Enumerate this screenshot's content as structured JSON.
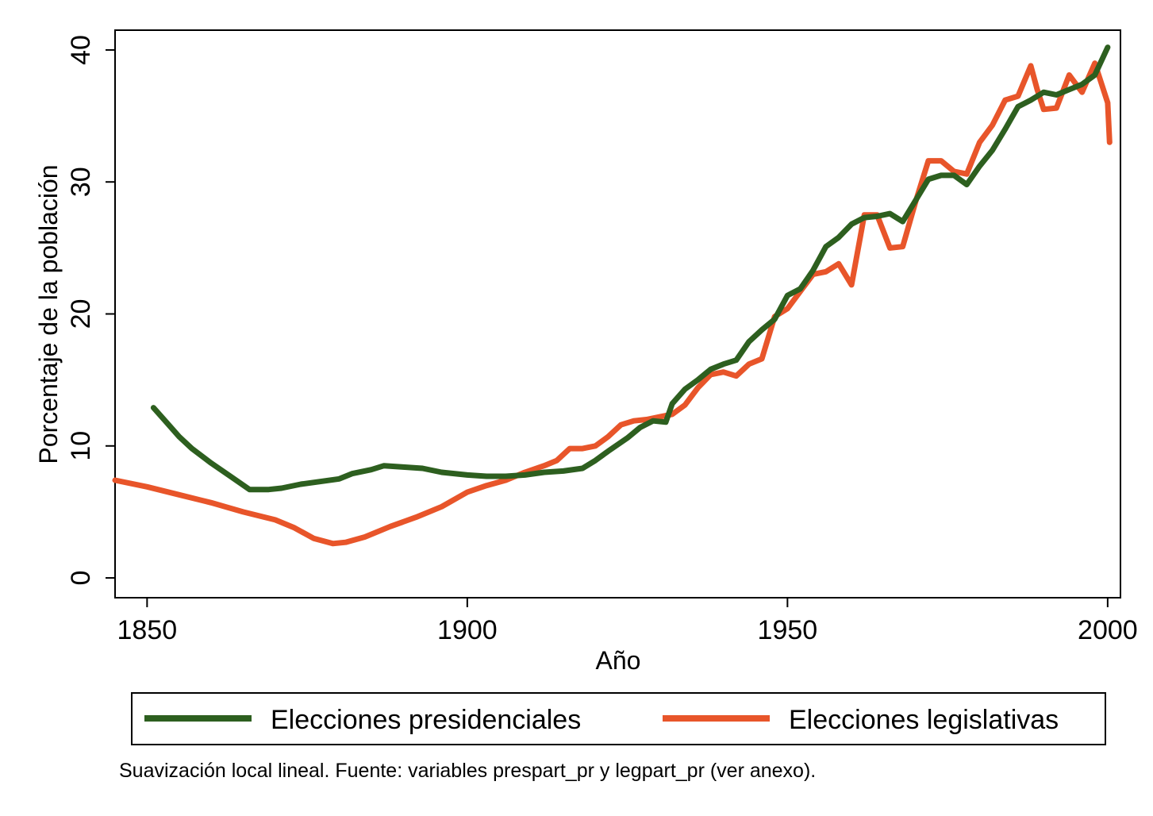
{
  "chart_data": {
    "type": "line",
    "title": "",
    "xlabel": "Año",
    "ylabel": "Porcentaje de la población",
    "xlim": [
      1845,
      2002
    ],
    "ylim": [
      -1.5,
      41.5
    ],
    "xticks": [
      1850,
      1900,
      1950,
      2000
    ],
    "yticks": [
      0,
      10,
      20,
      30,
      40
    ],
    "grid": false,
    "legend_position": "bottom",
    "note": "Suavización local lineal. Fuente: variables prespart_pr y legpart_pr (ver anexo).",
    "series": [
      {
        "name": "Elecciones presidenciales",
        "color": "#2d5f1f",
        "x": [
          1851,
          1853,
          1855,
          1857,
          1860,
          1863,
          1866,
          1869,
          1871,
          1874,
          1877,
          1880,
          1882,
          1885,
          1887,
          1890,
          1893,
          1896,
          1900,
          1903,
          1906,
          1909,
          1912,
          1915,
          1918,
          1920,
          1922,
          1925,
          1927,
          1929,
          1931,
          1932,
          1934,
          1936,
          1938,
          1940,
          1942,
          1944,
          1946,
          1948,
          1950,
          1952,
          1954,
          1956,
          1958,
          1960,
          1962,
          1964,
          1966,
          1968,
          1970,
          1972,
          1974,
          1976,
          1978,
          1980,
          1982,
          1984,
          1986,
          1988,
          1990,
          1992,
          1994,
          1996,
          1998,
          2000
        ],
        "y": [
          12.9,
          11.8,
          10.7,
          9.8,
          8.7,
          7.7,
          6.7,
          6.7,
          6.8,
          7.1,
          7.3,
          7.5,
          7.9,
          8.2,
          8.5,
          8.4,
          8.3,
          8.0,
          7.8,
          7.7,
          7.7,
          7.8,
          8.0,
          8.1,
          8.3,
          8.9,
          9.6,
          10.6,
          11.4,
          11.9,
          11.8,
          13.2,
          14.3,
          15.0,
          15.8,
          16.2,
          16.5,
          17.9,
          18.8,
          19.6,
          21.4,
          21.9,
          23.3,
          25.1,
          25.8,
          26.8,
          27.3,
          27.4,
          27.6,
          27.0,
          28.6,
          30.2,
          30.5,
          30.5,
          29.8,
          31.2,
          32.4,
          34.0,
          35.7,
          36.2,
          36.8,
          36.6,
          37.0,
          37.4,
          38.1,
          40.2
        ]
      },
      {
        "name": "Elecciones legislativas",
        "color": "#e8552a",
        "x": [
          1845,
          1850,
          1855,
          1860,
          1865,
          1870,
          1873,
          1876,
          1879,
          1881,
          1884,
          1888,
          1892,
          1896,
          1900,
          1903,
          1906,
          1909,
          1912,
          1914,
          1916,
          1918,
          1920,
          1922,
          1924,
          1926,
          1928,
          1930,
          1932,
          1934,
          1936,
          1938,
          1940,
          1942,
          1944,
          1946,
          1948,
          1950,
          1952,
          1954,
          1956,
          1958,
          1960,
          1962,
          1964,
          1966,
          1968,
          1970,
          1972,
          1974,
          1976,
          1978,
          1980,
          1982,
          1984,
          1986,
          1988,
          1989,
          1990,
          1992,
          1994,
          1996,
          1998,
          2000,
          2000.3
        ],
        "y": [
          7.4,
          6.9,
          6.3,
          5.7,
          5.0,
          4.4,
          3.8,
          3.0,
          2.6,
          2.7,
          3.1,
          3.9,
          4.6,
          5.4,
          6.5,
          7.0,
          7.4,
          8.0,
          8.5,
          8.9,
          9.8,
          9.8,
          10.0,
          10.7,
          11.6,
          11.9,
          12.0,
          12.2,
          12.4,
          13.1,
          14.4,
          15.4,
          15.6,
          15.3,
          16.2,
          16.6,
          19.8,
          20.4,
          21.7,
          23.0,
          23.2,
          23.8,
          22.2,
          27.5,
          27.5,
          25.0,
          25.1,
          28.5,
          31.6,
          31.6,
          30.8,
          30.6,
          33.0,
          34.3,
          36.2,
          36.5,
          38.8,
          37.0,
          35.5,
          35.6,
          38.1,
          36.8,
          39.0,
          36.0,
          33.0
        ]
      }
    ]
  }
}
